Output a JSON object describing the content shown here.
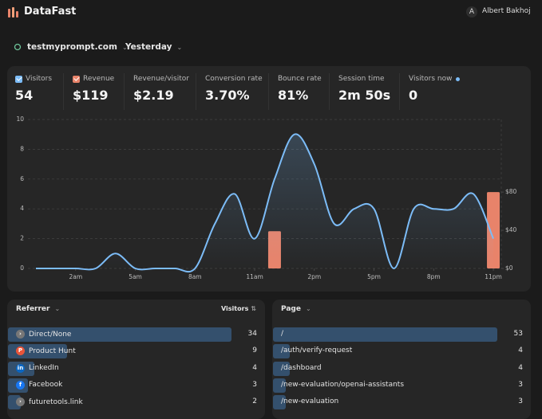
{
  "header": {
    "brand": "DataFast",
    "user_initial": "A",
    "user_name": "Albert Bakhoj"
  },
  "filters": {
    "site": "testmyprompt.com",
    "period": "Yesterday"
  },
  "metrics": [
    {
      "value": "54"
    },
    {
      "value": "$119"
    },
    {
      "label": "Revenue/visitor",
      "value": "$2.19"
    },
    {
      "label": "Conversion rate",
      "value": "3.70%"
    },
    {
      "label": "Bounce rate",
      "value": "81%"
    },
    {
      "label": "Session time",
      "value": "2m 50s"
    },
    {
      "label": "Visitors now",
      "value": "0"
    }
  ],
  "chart_data": {
    "type": "line",
    "x": [
      0,
      1,
      2,
      3,
      4,
      5,
      6,
      7,
      8,
      9,
      10,
      11,
      12,
      13,
      14,
      15,
      16,
      17,
      18,
      19,
      20,
      21,
      22,
      23
    ],
    "xlim": [
      -0.4,
      23.4
    ],
    "xticks": [
      {
        "value": 2,
        "label": "2am"
      },
      {
        "value": 5,
        "label": "5am"
      },
      {
        "value": 8,
        "label": "8am"
      },
      {
        "value": 11,
        "label": "11am"
      },
      {
        "value": 14,
        "label": "2pm"
      },
      {
        "value": 17,
        "label": "5pm"
      },
      {
        "value": 20,
        "label": "8pm"
      },
      {
        "value": 23,
        "label": "11pm"
      }
    ],
    "ylim": [
      0,
      10
    ],
    "yticks": [
      0,
      2,
      4,
      6,
      8,
      10
    ],
    "y2lim": [
      0,
      156
    ],
    "y2ticks": [
      {
        "value": 0,
        "label": "$0"
      },
      {
        "value": 40,
        "label": "$40"
      },
      {
        "value": 80,
        "label": "$80"
      }
    ],
    "grid": true,
    "series": [
      {
        "name": "Visitors",
        "color": "#7cbcf7",
        "values": [
          0,
          0,
          0,
          0,
          1,
          0,
          0,
          0,
          0,
          3,
          5,
          2,
          6,
          9,
          7,
          3,
          4,
          4,
          0,
          4,
          4,
          4,
          5,
          2
        ]
      },
      {
        "name": "Revenue",
        "type": "bar",
        "axis": "y2",
        "color": "#e8836a",
        "values": [
          null,
          null,
          null,
          null,
          null,
          null,
          null,
          null,
          null,
          null,
          null,
          null,
          39,
          null,
          null,
          null,
          null,
          null,
          null,
          null,
          null,
          null,
          null,
          80
        ]
      }
    ]
  },
  "referrers": {
    "title": "Referrer",
    "column": "Visitors",
    "rows": [
      {
        "name": "Direct/None",
        "count": 34
      },
      {
        "name": "Product Hunt",
        "count": 9
      },
      {
        "name": "LinkedIn",
        "count": 4
      },
      {
        "name": "Facebook",
        "count": 3
      },
      {
        "name": "futuretools.link",
        "count": 2
      }
    ]
  },
  "pages": {
    "title": "Page",
    "rows": [
      {
        "name": "/",
        "count": 53
      },
      {
        "name": "/auth/verify-request",
        "count": 4
      },
      {
        "name": "/dashboard",
        "count": 4
      },
      {
        "name": "/new-evaluation/openai-assistants",
        "count": 3
      },
      {
        "name": "/new-evaluation",
        "count": 3
      }
    ]
  }
}
